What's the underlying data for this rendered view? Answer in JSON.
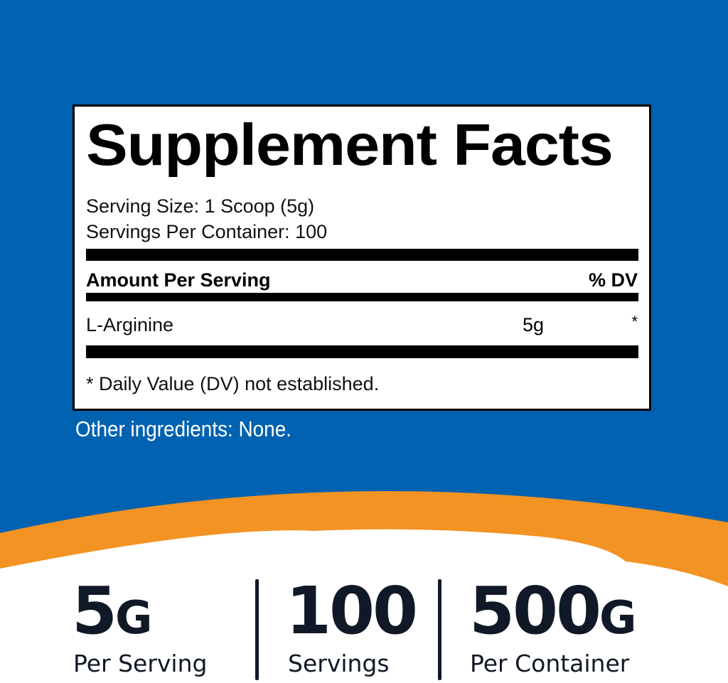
{
  "colors": {
    "background": "#0062b0",
    "accent": "#f39323",
    "text_dark": "#111827"
  },
  "facts": {
    "title": "Supplement Facts",
    "serving_size": "Serving Size: 1 Scoop (5g)",
    "servings_per_container": "Servings Per Container: 100",
    "header_amount": "Amount Per Serving",
    "header_dv": "% DV",
    "rows": [
      {
        "name": "L-Arginine",
        "amount": "5g",
        "dv": "*"
      }
    ],
    "footnote": "* Daily Value (DV) not established."
  },
  "other_ingredients": "Other ingredients: None.",
  "stats": [
    {
      "value": "5",
      "unit": "G",
      "label": "Per Serving"
    },
    {
      "value": "100",
      "unit": "",
      "label": "Servings"
    },
    {
      "value": "500",
      "unit": "G",
      "label": "Per Container"
    }
  ]
}
